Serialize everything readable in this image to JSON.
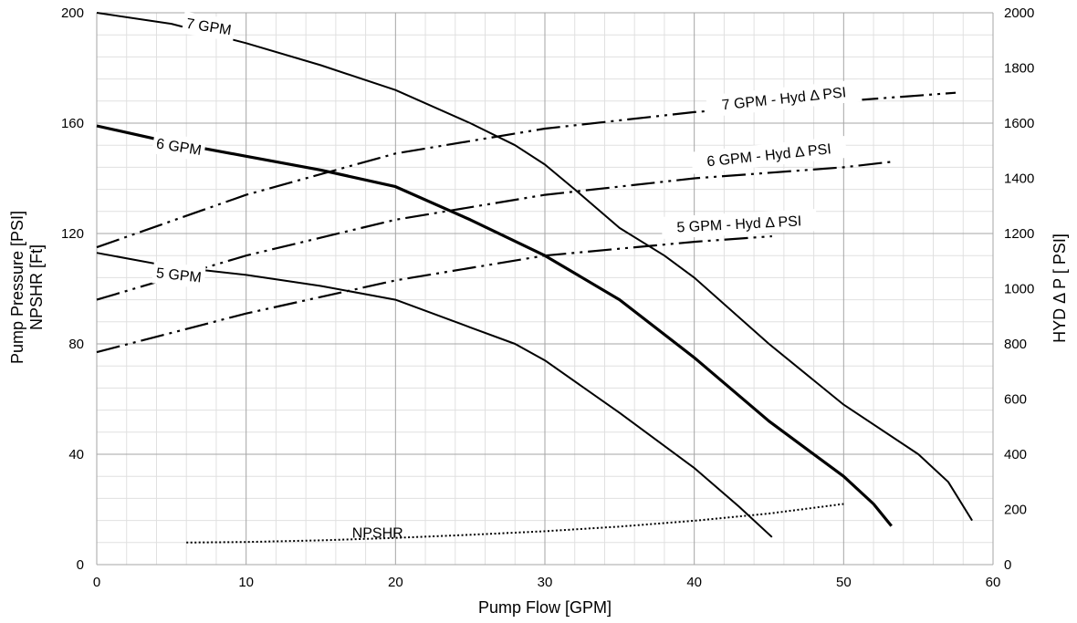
{
  "chart_data": {
    "type": "line",
    "title": "",
    "xlabel": "Pump Flow [GPM]",
    "ylabel_left": [
      "Pump Pressure [PSI]",
      "NPSHR [Ft]"
    ],
    "ylabel_right": "HYD Δ P [ PSI]",
    "xlim": [
      0,
      60
    ],
    "ylim_left": [
      0,
      200
    ],
    "ylim_right": [
      0,
      2000
    ],
    "x_ticks": [
      0,
      10,
      20,
      30,
      40,
      50,
      60
    ],
    "y_ticks_left": [
      0,
      40,
      80,
      120,
      160,
      200
    ],
    "y_ticks_right": [
      0,
      200,
      400,
      600,
      800,
      1000,
      1200,
      1400,
      1600,
      1800,
      2000
    ],
    "grid": true,
    "legend": "none",
    "series": [
      {
        "name": "7 GPM",
        "axis": "left",
        "style": "solid",
        "x": [
          0,
          5,
          10,
          15,
          20,
          25,
          28,
          30,
          32,
          35,
          38,
          40,
          45,
          50,
          55,
          57,
          58.6
        ],
        "y": [
          200,
          196,
          189,
          181,
          172,
          160,
          152,
          145,
          136,
          122,
          112,
          104,
          80,
          58,
          40,
          30,
          16
        ]
      },
      {
        "name": "6 GPM",
        "axis": "left",
        "style": "solid-bold",
        "x": [
          0,
          5,
          10,
          15,
          20,
          25,
          30,
          35,
          40,
          45,
          50,
          52,
          53.2
        ],
        "y": [
          159,
          153,
          148,
          143,
          137,
          125,
          112,
          96,
          75,
          52,
          32,
          22,
          14
        ]
      },
      {
        "name": "5 GPM",
        "axis": "left",
        "style": "solid",
        "x": [
          0,
          5,
          10,
          15,
          20,
          25,
          28,
          30,
          35,
          40,
          43,
          45.2
        ],
        "y": [
          113,
          108,
          105,
          101,
          96,
          86,
          80,
          74,
          55,
          35,
          21,
          10
        ]
      },
      {
        "name": "7 GPM - Hyd Δ PSI",
        "axis": "right",
        "style": "dash-dot-dot",
        "x": [
          0,
          10,
          20,
          30,
          40,
          50,
          57.5
        ],
        "y": [
          1150,
          1340,
          1490,
          1580,
          1640,
          1680,
          1710
        ]
      },
      {
        "name": "6 GPM - Hyd Δ PSI",
        "axis": "right",
        "style": "dash-dot-dot",
        "x": [
          0,
          10,
          20,
          30,
          40,
          50,
          53.2
        ],
        "y": [
          960,
          1120,
          1250,
          1340,
          1400,
          1440,
          1460
        ]
      },
      {
        "name": "5 GPM - Hyd Δ PSI",
        "axis": "right",
        "style": "dash-dot-dot",
        "x": [
          0,
          10,
          20,
          30,
          40,
          45.2
        ],
        "y": [
          770,
          910,
          1030,
          1120,
          1170,
          1190
        ]
      },
      {
        "name": "NPSHR",
        "axis": "left",
        "style": "dotted",
        "x": [
          6,
          10,
          15,
          20,
          25,
          30,
          35,
          40,
          45,
          50
        ],
        "y": [
          8,
          8.2,
          8.8,
          9.7,
          10.8,
          12.1,
          13.8,
          15.9,
          18.5,
          22
        ]
      }
    ],
    "annotations": [
      {
        "text": "7 GPM",
        "series": "7 GPM",
        "x": 7.5,
        "y": 195,
        "angle": 9,
        "knockout": true
      },
      {
        "text": "6 GPM",
        "series": "6 GPM",
        "x": 5.5,
        "y": 151.5,
        "angle": 9,
        "knockout": true
      },
      {
        "text": "5 GPM",
        "series": "5 GPM",
        "x": 5.5,
        "y": 105,
        "angle": 6,
        "knockout": true
      },
      {
        "text": "7 GPM - Hyd Δ PSI",
        "series": "7 GPM - Hyd Δ PSI",
        "x": 46,
        "y": 1690,
        "angle": -6,
        "knockout": true
      },
      {
        "text": "6 GPM - Hyd Δ PSI",
        "series": "6 GPM - Hyd Δ PSI",
        "x": 45,
        "y": 1485,
        "angle": -6,
        "knockout": true
      },
      {
        "text": "5 GPM - Hyd Δ PSI",
        "series": "5 GPM - Hyd Δ PSI",
        "x": 43,
        "y": 1235,
        "angle": -3,
        "knockout": true
      },
      {
        "text": "NPSHR",
        "series": "NPSHR",
        "x": 18.8,
        "y": 11.5,
        "angle": 0,
        "knockout": false
      }
    ]
  }
}
